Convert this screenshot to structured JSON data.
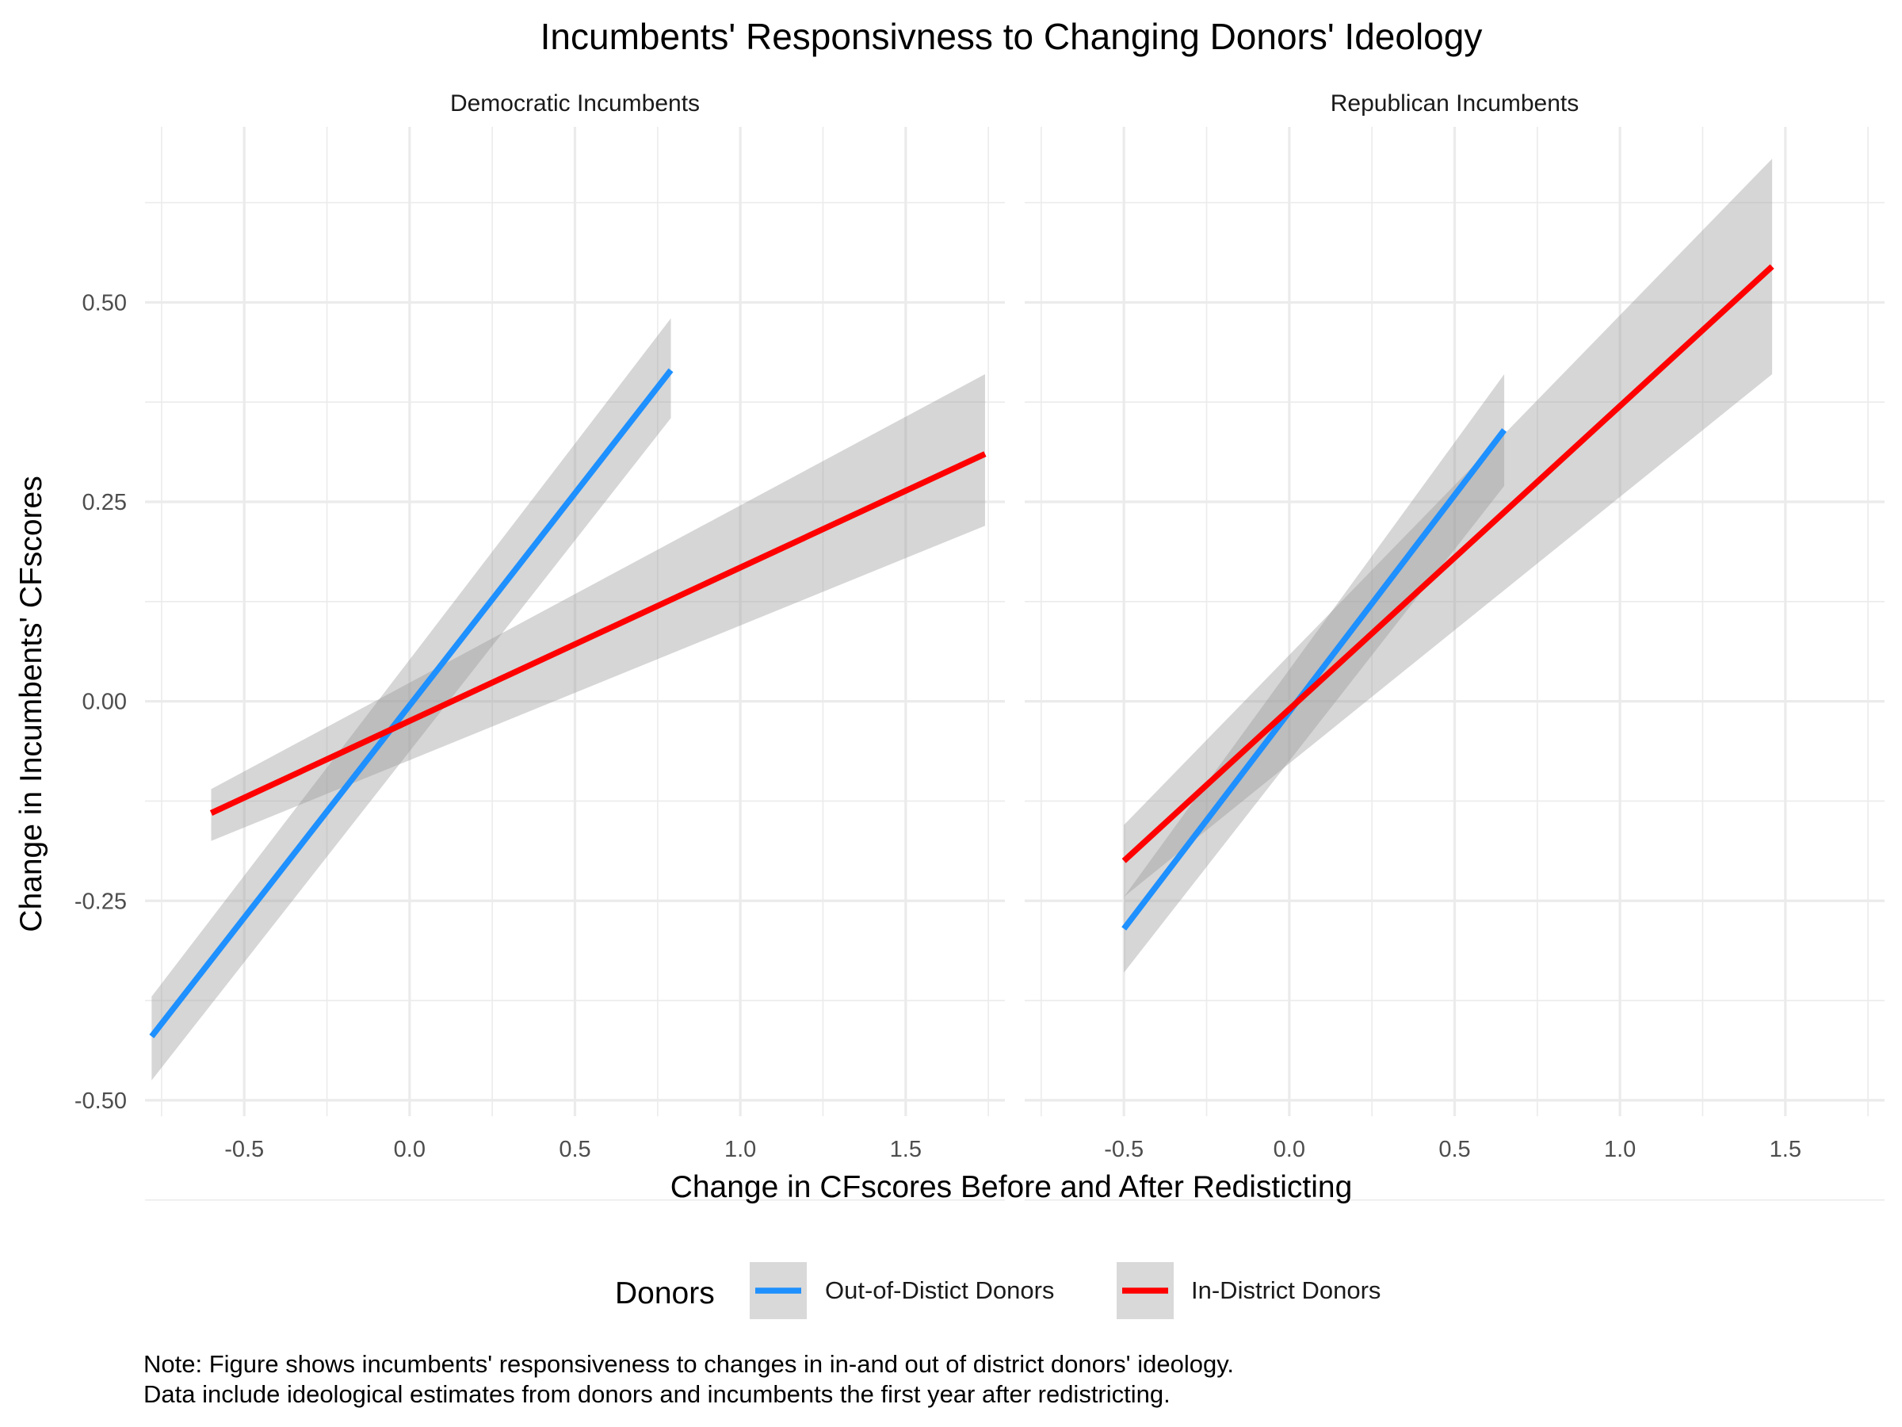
{
  "chart_data": {
    "type": "line",
    "title": "Incumbents' Responsivness to Changing Donors' Ideology",
    "xlabel": "Change in CFscores Before and After Redisticting",
    "ylabel": "Change in Incumbents' CFscores",
    "xlim": [
      -0.8,
      1.8
    ],
    "ylim": [
      -0.52,
      0.72
    ],
    "x_ticks": [
      -0.5,
      0.0,
      0.5,
      1.0,
      1.5
    ],
    "x_tick_labels": [
      "-0.5",
      "0.0",
      "0.5",
      "1.0",
      "1.5"
    ],
    "y_ticks": [
      -0.5,
      -0.25,
      0.0,
      0.25,
      0.5
    ],
    "y_tick_labels": [
      "-0.50",
      "-0.25",
      "0.00",
      "0.25",
      "0.50"
    ],
    "grid": true,
    "legend": {
      "title": "Donors",
      "position": "bottom",
      "entries": [
        {
          "label": "Out-of-Distict Donors",
          "color": "#1E90FF"
        },
        {
          "label": "In-District Donors",
          "color": "#FF0000"
        }
      ]
    },
    "facets": [
      {
        "label": "Democratic Incumbents",
        "series": [
          {
            "legend_index": 0,
            "color": "#1E90FF",
            "x": [
              -0.78,
              0.79
            ],
            "y": [
              -0.42,
              0.415
            ],
            "ci_lower": [
              -0.475,
              0.355
            ],
            "ci_upper": [
              -0.37,
              0.48
            ]
          },
          {
            "legend_index": 1,
            "color": "#FF0000",
            "x": [
              -0.6,
              1.74
            ],
            "y": [
              -0.14,
              0.31
            ],
            "ci_lower": [
              -0.175,
              0.22
            ],
            "ci_upper": [
              -0.11,
              0.41
            ]
          }
        ]
      },
      {
        "label": "Republican Incumbents",
        "series": [
          {
            "legend_index": 0,
            "color": "#1E90FF",
            "x": [
              -0.5,
              0.65
            ],
            "y": [
              -0.285,
              0.34
            ],
            "ci_lower": [
              -0.34,
              0.27
            ],
            "ci_upper": [
              -0.245,
              0.41
            ]
          },
          {
            "legend_index": 1,
            "color": "#FF0000",
            "x": [
              -0.5,
              1.46
            ],
            "y": [
              -0.2,
              0.545
            ],
            "ci_lower": [
              -0.245,
              0.41
            ],
            "ci_upper": [
              -0.155,
              0.68
            ]
          }
        ]
      }
    ],
    "note": [
      "Note: Figure shows incumbents' responsiveness to changes in in-and out of district donors' ideology.",
      "Data include ideological estimates from donors and incumbents the first year after redistricting."
    ]
  }
}
